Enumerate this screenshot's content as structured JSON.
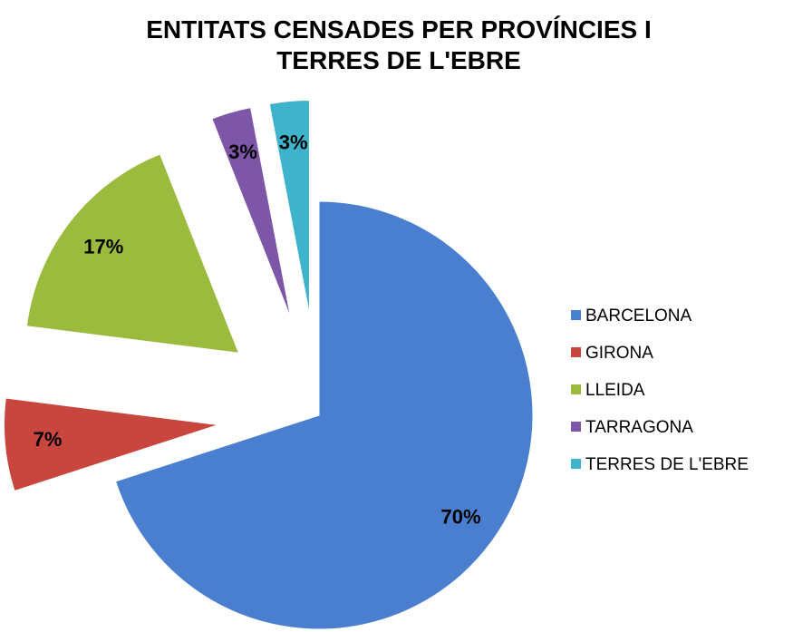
{
  "chart_data": {
    "type": "pie",
    "title": "ENTITATS CENSADES PER PROVÍNCIES I TERRES DE L'EBRE",
    "categories": [
      "BARCELONA",
      "GIRONA",
      "LLEIDA",
      "TARRAGONA",
      "TERRES DE L'EBRE"
    ],
    "values": [
      70,
      7,
      17,
      3,
      3
    ],
    "value_labels": [
      "70%",
      "7%",
      "17%",
      "3%",
      "3%"
    ],
    "colors": [
      "#4a7fcf",
      "#c9463f",
      "#9bbb3f",
      "#7e56a8",
      "#3fb3cc"
    ],
    "legend": "right",
    "exploded": true
  }
}
